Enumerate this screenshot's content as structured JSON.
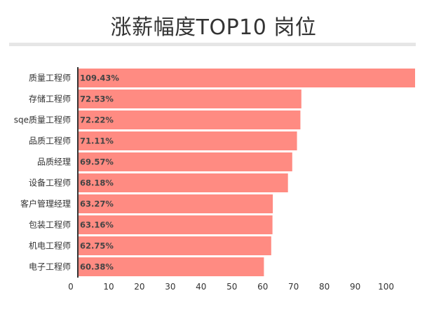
{
  "chart_data": {
    "type": "bar",
    "orientation": "horizontal",
    "title": "涨薪幅度TOP10 岗位",
    "categories": [
      "质量工程师",
      "存储工程师",
      "sqe质量工程师",
      "品质工程师",
      "品质经理",
      "设备工程师",
      "客户管理经理",
      "包装工程师",
      "机电工程师",
      "电子工程师"
    ],
    "values": [
      109.43,
      72.53,
      72.22,
      71.11,
      69.57,
      68.18,
      63.27,
      63.16,
      62.75,
      60.38
    ],
    "value_labels": [
      "109.43%",
      "72.53%",
      "72.22%",
      "71.11%",
      "69.57%",
      "68.18%",
      "63.27%",
      "63.16%",
      "62.75%",
      "60.38%"
    ],
    "x_ticks": [
      "0",
      "10",
      "20",
      "30",
      "40",
      "50",
      "60",
      "70",
      "80",
      "90",
      "100"
    ],
    "xlim": [
      0,
      109.43
    ],
    "xlabel": "",
    "ylabel": "",
    "grid": false,
    "legend": "none",
    "bar_color": "#ff8b82",
    "axis_color": "#333333"
  }
}
